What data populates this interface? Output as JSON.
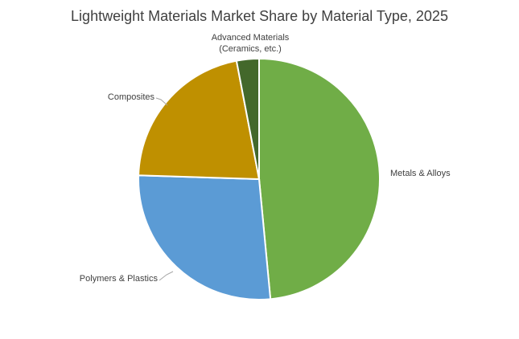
{
  "chart_data": {
    "type": "pie",
    "title": "Lightweight Materials Market Share by Material Type, 2025",
    "slices": [
      {
        "label": "Metals & Alloys",
        "value": 48.5,
        "color": "#70ad47"
      },
      {
        "label": "Polymers & Plastics",
        "value": 27.0,
        "color": "#5b9bd5"
      },
      {
        "label": "Composites",
        "value": 21.5,
        "color": "#bf9000"
      },
      {
        "label_lines": [
          "Advanced Materials",
          "(Ceramics, etc.)"
        ],
        "value": 3.0,
        "color": "#43682b"
      }
    ],
    "start_angle": "12 o'clock",
    "direction": "clockwise",
    "legend": "none",
    "labels": "outside, next to slices"
  }
}
